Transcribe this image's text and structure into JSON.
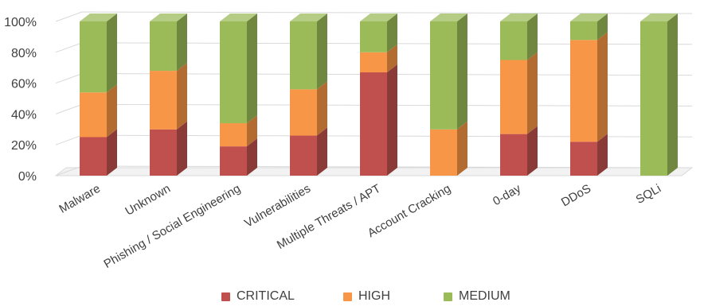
{
  "chart_data": {
    "type": "bar",
    "stacked": true,
    "categories": [
      "Malware",
      "Unknown",
      "Phishing / Social Engineering",
      "Vulnerabilities",
      "Multiple Threats / APT",
      "Account Cracking",
      "0-day",
      "DDoS",
      "SQLi"
    ],
    "series": [
      {
        "name": "CRITICAL",
        "color": "#c0504d",
        "values": [
          25,
          30,
          19,
          26,
          67,
          0,
          27,
          22,
          0
        ]
      },
      {
        "name": "HIGH",
        "color": "#f79646",
        "values": [
          29,
          38,
          15,
          30,
          13,
          30,
          48,
          66,
          0
        ]
      },
      {
        "name": "MEDIUM",
        "color": "#9bbb59",
        "values": [
          46,
          32,
          66,
          44,
          20,
          70,
          25,
          12,
          100
        ]
      }
    ],
    "yticks": [
      "0%",
      "20%",
      "40%",
      "60%",
      "80%",
      "100%"
    ],
    "ylim": [
      0,
      100
    ],
    "grid": true,
    "legend_position": "bottom"
  }
}
